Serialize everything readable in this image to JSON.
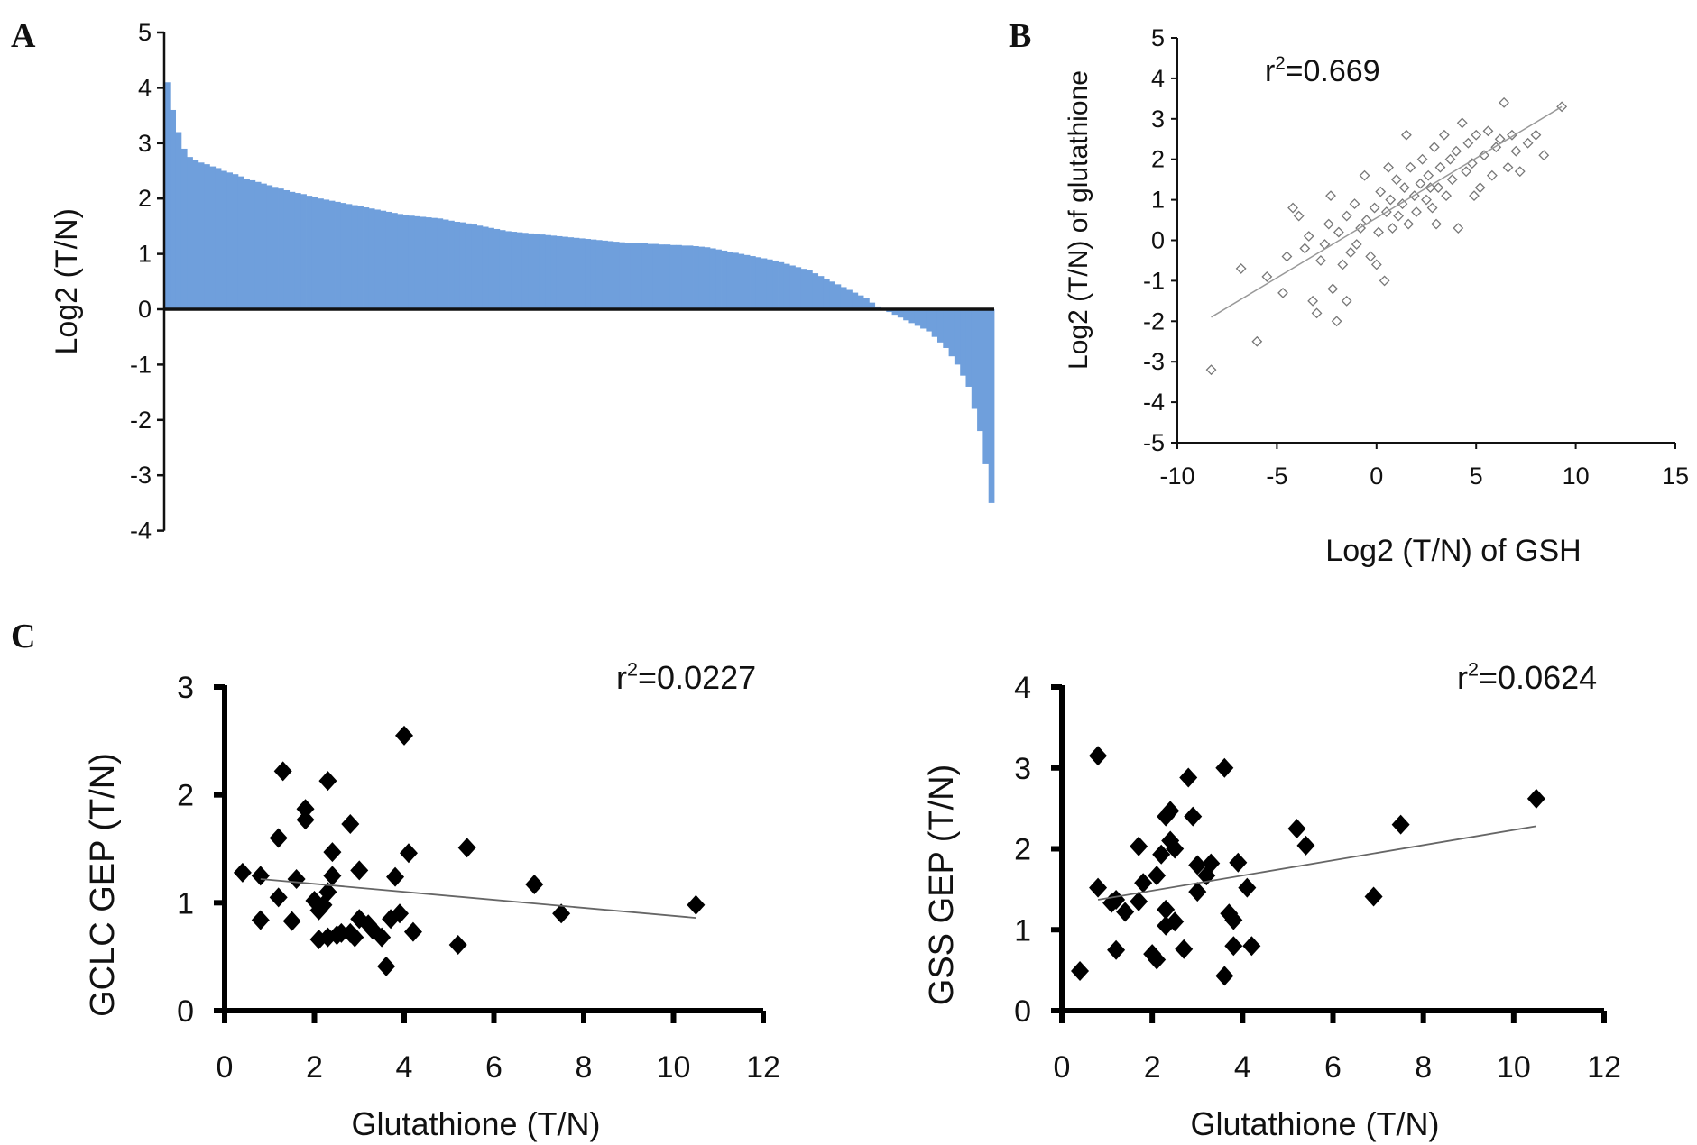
{
  "panels": {
    "a": "A",
    "b": "B",
    "c": "C"
  },
  "chart_data": [
    {
      "type": "bar",
      "panel": "A",
      "ylabel": "Log2 (T/N)",
      "xlabel": "",
      "ylim": [
        -4,
        5
      ],
      "yticks": [
        5,
        4,
        3,
        2,
        1,
        0,
        -1,
        -2,
        -3,
        -4
      ],
      "color": "#6f9fdc",
      "values": [
        4.1,
        3.6,
        3.2,
        2.9,
        2.75,
        2.7,
        2.65,
        2.62,
        2.58,
        2.55,
        2.5,
        2.47,
        2.44,
        2.4,
        2.36,
        2.33,
        2.3,
        2.27,
        2.24,
        2.21,
        2.18,
        2.15,
        2.12,
        2.1,
        2.08,
        2.05,
        2.03,
        2.0,
        1.98,
        1.96,
        1.94,
        1.92,
        1.9,
        1.88,
        1.86,
        1.84,
        1.82,
        1.8,
        1.78,
        1.76,
        1.74,
        1.72,
        1.7,
        1.69,
        1.68,
        1.67,
        1.66,
        1.65,
        1.64,
        1.62,
        1.6,
        1.58,
        1.57,
        1.55,
        1.53,
        1.51,
        1.49,
        1.47,
        1.45,
        1.43,
        1.41,
        1.4,
        1.39,
        1.38,
        1.37,
        1.36,
        1.35,
        1.34,
        1.33,
        1.32,
        1.31,
        1.3,
        1.29,
        1.28,
        1.27,
        1.26,
        1.25,
        1.24,
        1.23,
        1.22,
        1.21,
        1.2,
        1.2,
        1.19,
        1.19,
        1.18,
        1.18,
        1.17,
        1.17,
        1.16,
        1.16,
        1.15,
        1.15,
        1.14,
        1.13,
        1.12,
        1.1,
        1.08,
        1.06,
        1.04,
        1.02,
        1.0,
        0.98,
        0.96,
        0.94,
        0.92,
        0.9,
        0.88,
        0.85,
        0.82,
        0.79,
        0.76,
        0.73,
        0.7,
        0.65,
        0.6,
        0.55,
        0.5,
        0.45,
        0.4,
        0.35,
        0.3,
        0.25,
        0.2,
        0.12,
        0.05,
        0.0,
        -0.05,
        -0.1,
        -0.15,
        -0.2,
        -0.25,
        -0.3,
        -0.35,
        -0.4,
        -0.5,
        -0.6,
        -0.7,
        -0.85,
        -1.0,
        -1.2,
        -1.4,
        -1.8,
        -2.2,
        -2.8,
        -3.5
      ]
    },
    {
      "type": "scatter",
      "panel": "B",
      "annotation": "r²=0.669",
      "xlabel": "Log2 (T/N) of GSH",
      "ylabel": "Log2 (T/N) of glutathione",
      "xlim": [
        -10,
        15
      ],
      "ylim": [
        -5,
        5
      ],
      "xticks": [
        -10,
        -5,
        0,
        5,
        10,
        15
      ],
      "yticks": [
        5,
        4,
        3,
        2,
        1,
        0,
        -1,
        -2,
        -3,
        -4,
        -5
      ],
      "marker": "open-diamond",
      "trendline": [
        [
          -8.3,
          -1.9
        ],
        [
          9.3,
          3.3
        ]
      ],
      "points": [
        [
          -8.3,
          -3.2
        ],
        [
          -6.8,
          -0.7
        ],
        [
          -6,
          -2.5
        ],
        [
          -5.5,
          -0.9
        ],
        [
          -4.7,
          -1.3
        ],
        [
          -4.5,
          -0.4
        ],
        [
          -4.2,
          0.8
        ],
        [
          -3.9,
          0.6
        ],
        [
          -3.6,
          -0.2
        ],
        [
          -3.4,
          0.1
        ],
        [
          -3.2,
          -1.5
        ],
        [
          -3.0,
          -1.8
        ],
        [
          -2.8,
          -0.5
        ],
        [
          -2.6,
          -0.1
        ],
        [
          -2.4,
          0.4
        ],
        [
          -2.2,
          -1.2
        ],
        [
          -2.0,
          -2.0
        ],
        [
          -1.9,
          0.2
        ],
        [
          -1.7,
          -0.6
        ],
        [
          -1.5,
          0.6
        ],
        [
          -1.3,
          -0.3
        ],
        [
          -1.1,
          0.9
        ],
        [
          -1.0,
          -0.1
        ],
        [
          -0.8,
          0.3
        ],
        [
          -0.6,
          1.6
        ],
        [
          -0.5,
          0.5
        ],
        [
          -0.3,
          -0.4
        ],
        [
          -0.1,
          0.8
        ],
        [
          0.1,
          0.2
        ],
        [
          0.2,
          1.2
        ],
        [
          0.4,
          -1.0
        ],
        [
          0.5,
          0.7
        ],
        [
          0.7,
          1.0
        ],
        [
          0.8,
          0.3
        ],
        [
          1.0,
          1.5
        ],
        [
          1.1,
          0.6
        ],
        [
          1.3,
          0.9
        ],
        [
          1.4,
          1.3
        ],
        [
          1.6,
          0.4
        ],
        [
          1.7,
          1.8
        ],
        [
          1.9,
          1.1
        ],
        [
          2.0,
          0.7
        ],
        [
          2.2,
          1.4
        ],
        [
          2.3,
          2.0
        ],
        [
          2.5,
          1.0
        ],
        [
          2.6,
          1.6
        ],
        [
          2.8,
          0.8
        ],
        [
          2.9,
          2.3
        ],
        [
          3.1,
          1.3
        ],
        [
          3.2,
          1.8
        ],
        [
          3.4,
          2.6
        ],
        [
          3.5,
          1.1
        ],
        [
          3.7,
          2.0
        ],
        [
          3.8,
          1.5
        ],
        [
          4.0,
          2.2
        ],
        [
          4.1,
          0.3
        ],
        [
          4.3,
          2.9
        ],
        [
          4.5,
          1.7
        ],
        [
          4.6,
          2.4
        ],
        [
          4.8,
          1.9
        ],
        [
          5.0,
          2.6
        ],
        [
          5.2,
          1.3
        ],
        [
          5.4,
          2.1
        ],
        [
          5.6,
          2.7
        ],
        [
          5.8,
          1.6
        ],
        [
          6.0,
          2.3
        ],
        [
          6.2,
          2.5
        ],
        [
          6.4,
          3.4
        ],
        [
          6.6,
          1.8
        ],
        [
          6.8,
          2.6
        ],
        [
          7.0,
          2.2
        ],
        [
          7.2,
          1.7
        ],
        [
          7.6,
          2.4
        ],
        [
          8.0,
          2.6
        ],
        [
          8.4,
          2.1
        ],
        [
          9.3,
          3.3
        ],
        [
          -2.3,
          1.1
        ],
        [
          0.0,
          -0.6
        ],
        [
          1.5,
          2.6
        ],
        [
          3.0,
          0.4
        ],
        [
          -1.5,
          -1.5
        ],
        [
          2.7,
          1.3
        ],
        [
          4.9,
          1.1
        ],
        [
          0.6,
          1.8
        ]
      ]
    },
    {
      "type": "scatter",
      "panel": "C-left",
      "annotation": "r²=0.0227",
      "xlabel": "Glutathione (T/N)",
      "ylabel": "GCLC GEP (T/N)",
      "xlim": [
        0,
        12
      ],
      "ylim": [
        0,
        3
      ],
      "xticks": [
        0,
        2,
        4,
        6,
        8,
        10,
        12
      ],
      "yticks": [
        0,
        1,
        2,
        3
      ],
      "marker": "filled-diamond",
      "trendline": [
        [
          0.8,
          1.22
        ],
        [
          10.5,
          0.86
        ]
      ],
      "points": [
        [
          0.4,
          1.28
        ],
        [
          0.8,
          1.25
        ],
        [
          0.8,
          0.84
        ],
        [
          1.2,
          1.05
        ],
        [
          1.2,
          1.6
        ],
        [
          1.3,
          2.22
        ],
        [
          1.5,
          0.83
        ],
        [
          1.6,
          1.22
        ],
        [
          1.8,
          1.87
        ],
        [
          1.8,
          1.77
        ],
        [
          2.0,
          1.02
        ],
        [
          2.1,
          0.66
        ],
        [
          2.1,
          0.93
        ],
        [
          2.2,
          0.98
        ],
        [
          2.3,
          0.68
        ],
        [
          2.3,
          1.1
        ],
        [
          2.3,
          2.13
        ],
        [
          2.4,
          1.47
        ],
        [
          2.4,
          1.25
        ],
        [
          2.5,
          0.7
        ],
        [
          2.6,
          0.72
        ],
        [
          2.8,
          0.72
        ],
        [
          2.8,
          1.73
        ],
        [
          2.9,
          0.68
        ],
        [
          3.0,
          1.3
        ],
        [
          3.0,
          0.85
        ],
        [
          3.2,
          0.8
        ],
        [
          3.3,
          0.75
        ],
        [
          3.5,
          0.68
        ],
        [
          3.6,
          0.41
        ],
        [
          3.7,
          0.85
        ],
        [
          3.8,
          1.24
        ],
        [
          3.9,
          0.9
        ],
        [
          4.0,
          2.55
        ],
        [
          4.1,
          1.46
        ],
        [
          4.2,
          0.73
        ],
        [
          5.2,
          0.61
        ],
        [
          5.4,
          1.51
        ],
        [
          6.9,
          1.17
        ],
        [
          7.5,
          0.9
        ],
        [
          10.5,
          0.98
        ]
      ]
    },
    {
      "type": "scatter",
      "panel": "C-right",
      "annotation": "r²=0.0624",
      "xlabel": "Glutathione (T/N)",
      "ylabel": "GSS GEP (T/N)",
      "xlim": [
        0,
        12
      ],
      "ylim": [
        0,
        4
      ],
      "xticks": [
        0,
        2,
        4,
        6,
        8,
        10,
        12
      ],
      "yticks": [
        0,
        1,
        2,
        3,
        4
      ],
      "marker": "filled-diamond",
      "trendline": [
        [
          0.8,
          1.37
        ],
        [
          10.5,
          2.28
        ]
      ],
      "points": [
        [
          0.4,
          0.49
        ],
        [
          0.8,
          3.15
        ],
        [
          0.8,
          1.52
        ],
        [
          1.1,
          1.33
        ],
        [
          1.2,
          0.75
        ],
        [
          1.2,
          1.37
        ],
        [
          1.4,
          1.22
        ],
        [
          1.7,
          2.03
        ],
        [
          1.7,
          1.35
        ],
        [
          1.8,
          1.58
        ],
        [
          2.0,
          0.7
        ],
        [
          2.1,
          0.63
        ],
        [
          2.1,
          1.67
        ],
        [
          2.2,
          1.93
        ],
        [
          2.3,
          2.4
        ],
        [
          2.3,
          1.25
        ],
        [
          2.3,
          1.05
        ],
        [
          2.4,
          2.47
        ],
        [
          2.4,
          2.1
        ],
        [
          2.5,
          2.0
        ],
        [
          2.5,
          1.1
        ],
        [
          2.7,
          0.76
        ],
        [
          2.8,
          2.88
        ],
        [
          2.9,
          2.4
        ],
        [
          3.0,
          1.8
        ],
        [
          3.0,
          1.47
        ],
        [
          3.2,
          1.67
        ],
        [
          3.3,
          1.82
        ],
        [
          3.6,
          3.0
        ],
        [
          3.6,
          0.43
        ],
        [
          3.7,
          1.2
        ],
        [
          3.8,
          1.12
        ],
        [
          3.8,
          0.8
        ],
        [
          3.9,
          1.83
        ],
        [
          4.1,
          1.52
        ],
        [
          4.2,
          0.8
        ],
        [
          5.2,
          2.25
        ],
        [
          5.4,
          2.04
        ],
        [
          6.9,
          1.41
        ],
        [
          7.5,
          2.3
        ],
        [
          10.5,
          2.62
        ]
      ]
    }
  ]
}
